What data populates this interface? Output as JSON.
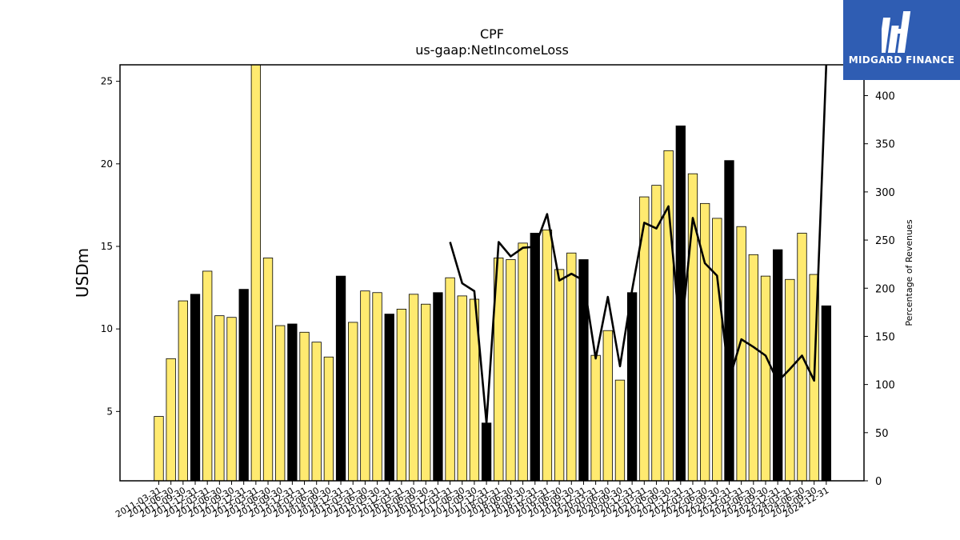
{
  "logo": {
    "text": "MIDGARD FINANCE"
  },
  "chart_data": {
    "type": "bar",
    "title": "CPF",
    "subtitle": "us-gaap:NetIncomeLoss",
    "ylabel": "USDm",
    "y2label": "Percentage of Revenues",
    "ylim": [
      0.8,
      26
    ],
    "y2lim": [
      0,
      432
    ],
    "yticks": [
      5,
      10,
      15,
      20,
      25
    ],
    "y2ticks": [
      0,
      50,
      100,
      150,
      200,
      250,
      300,
      350,
      400
    ],
    "grid": false,
    "categories": [
      "2011-03-31",
      "2011-06-30",
      "2011-09-30",
      "2011-12-31",
      "2012-03-31",
      "2012-06-30",
      "2012-09-30",
      "2012-12-31",
      "2013-03-31",
      "2013-06-30",
      "2013-09-30",
      "2013-12-31",
      "2014-03-31",
      "2014-06-30",
      "2014-09-30",
      "2014-12-31",
      "2015-03-31",
      "2015-06-30",
      "2015-09-30",
      "2015-12-31",
      "2016-03-31",
      "2016-06-30",
      "2016-09-30",
      "2016-12-31",
      "2017-03-31",
      "2017-06-30",
      "2017-09-30",
      "2017-12-31",
      "2018-03-31",
      "2018-06-30",
      "2018-09-30",
      "2018-12-31",
      "2019-03-31",
      "2019-06-30",
      "2019-09-30",
      "2019-12-31",
      "2020-03-31",
      "2020-06-30",
      "2020-09-30",
      "2020-12-31",
      "2021-03-31",
      "2021-06-30",
      "2021-09-30",
      "2021-12-31",
      "2022-03-31",
      "2022-06-30",
      "2022-09-30",
      "2022-12-31",
      "2023-03-31",
      "2023-06-30",
      "2023-09-30",
      "2023-12-31",
      "2024-03-31",
      "2024-06-30",
      "2024-09-30",
      "2024-12-31"
    ],
    "x_tick_labels": [
      "2011-03-31",
      "2011-06-30",
      "2011-09-30",
      "2011-12-31",
      "2012-03-31",
      "2012-06-30",
      "2012-09-30",
      "2012-12-31",
      "2013-03-31",
      "2013-06-30",
      "2013-09-30",
      "2013-12-31",
      "2014-03-31",
      "2014-06-30",
      "2014-09-30",
      "2014-12-31",
      "2015-03-31",
      "2015-06-30",
      "2015-09-30",
      "2015-12-31",
      "2016-03-31",
      "2016-06-30",
      "2016-09-30",
      "2016-12-31",
      "2017-03-31",
      "2017-06-30",
      "2017-09-30",
      "2017-12-31",
      "2018-03-31",
      "2018-06-30",
      "2018-09-30",
      "2018-12-31",
      "2019-03-31",
      "2019-06-30",
      "2019-09-30",
      "2019-12-31",
      "2020-03-31",
      "2020-06-30",
      "2020-09-30",
      "2020-12-31",
      "2021-03-31",
      "2021-06-30",
      "2021-09-30",
      "2021-12-31",
      "2022-03-31",
      "2022-06-30",
      "2022-09-30",
      "2022-12-31",
      "2023-03-31",
      "2023-06-30",
      "2023-09-30",
      "2023-12-31",
      "2024-03-31",
      "2024-06-30",
      "2024-09-30",
      "2024-12-31"
    ],
    "series": [
      {
        "type": "bar",
        "values": [
          4.7,
          8.2,
          11.7,
          12.1,
          13.5,
          10.8,
          10.7,
          12.4,
          26.0,
          14.3,
          10.2,
          10.3,
          9.8,
          9.2,
          8.3,
          13.2,
          10.4,
          12.3,
          12.2,
          10.9,
          11.2,
          12.1,
          11.5,
          12.2,
          13.1,
          12.0,
          11.8,
          4.3,
          14.3,
          14.2,
          15.2,
          15.8,
          16.0,
          13.6,
          14.6,
          14.2,
          8.4,
          9.9,
          6.9,
          12.2,
          18.0,
          18.7,
          20.8,
          22.3,
          19.4,
          17.6,
          16.7,
          20.2,
          16.2,
          14.5,
          13.2,
          14.8,
          13.0,
          15.8,
          13.3,
          11.4
        ],
        "highlight_color": "#000000",
        "highlight_indices": [
          3,
          7,
          11,
          15,
          19,
          23,
          27,
          31,
          35,
          39,
          43,
          47,
          51,
          55
        ],
        "color": "#ffea70"
      },
      {
        "type": "line",
        "axis": "right",
        "color": "#000000",
        "values": [
          null,
          null,
          null,
          null,
          null,
          null,
          null,
          null,
          null,
          null,
          null,
          null,
          null,
          null,
          null,
          null,
          null,
          null,
          null,
          null,
          null,
          null,
          null,
          null,
          248,
          205,
          197,
          60,
          248,
          233,
          242,
          243,
          277,
          208,
          215,
          208,
          127,
          191,
          119,
          198,
          268,
          262,
          285,
          147,
          273,
          226,
          213,
          105,
          147,
          139,
          130,
          103,
          116,
          130,
          104,
          432
        ]
      }
    ]
  }
}
